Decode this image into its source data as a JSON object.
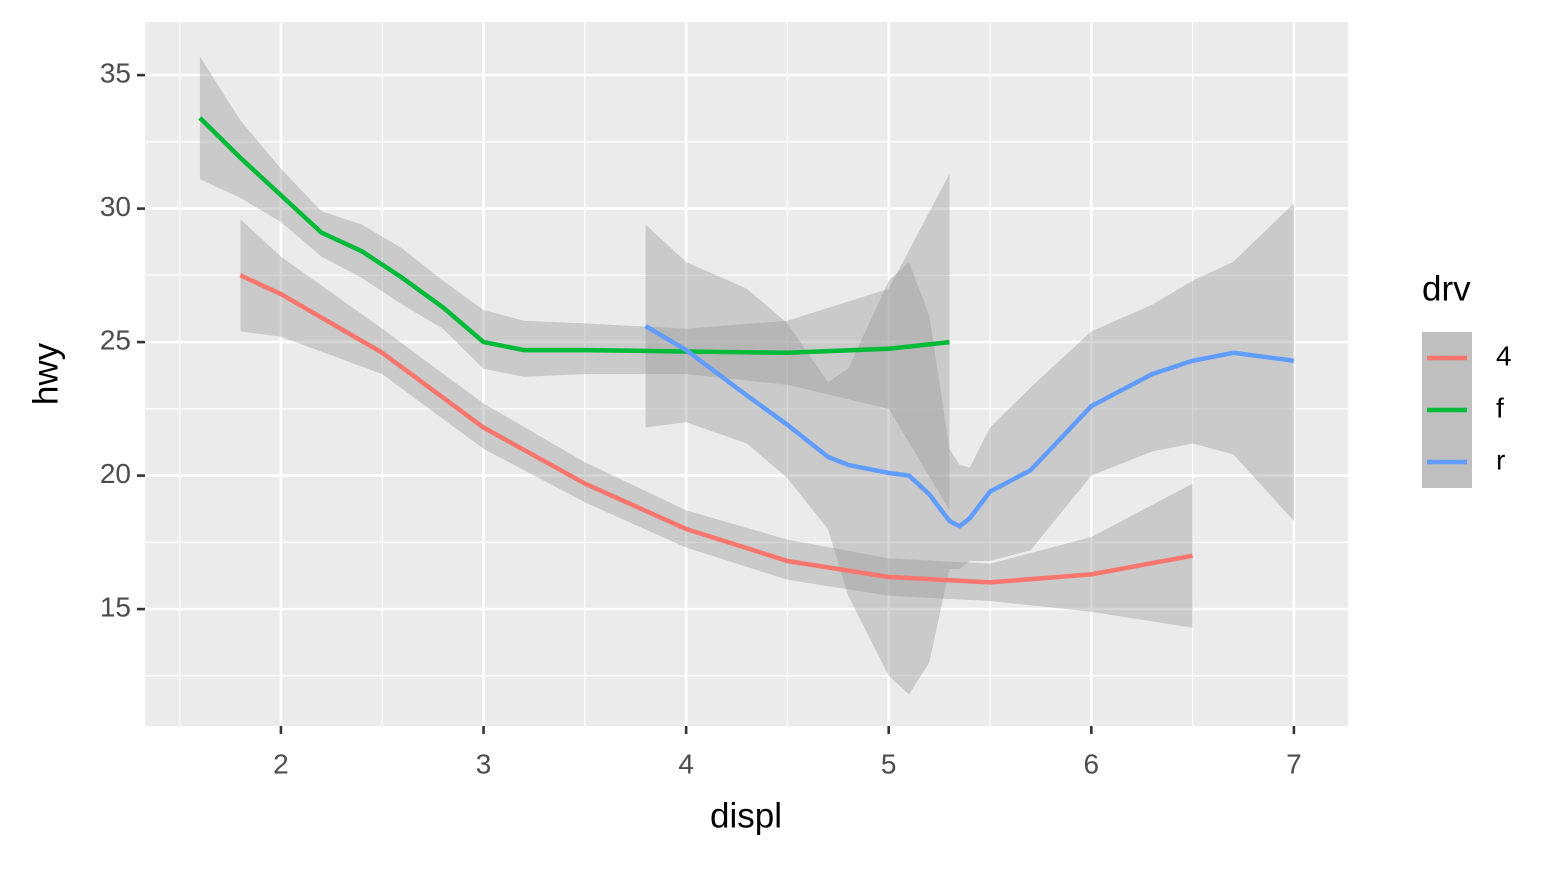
{
  "chart_data": {
    "type": "smooth",
    "x_label": "displ",
    "y_label": "hwy",
    "legend_title": "drv",
    "legend": "right",
    "xlim": [
      1.329,
      7.267
    ],
    "ylim": [
      10.62,
      36.99
    ],
    "xticks": [
      2,
      3,
      4,
      5,
      6,
      7
    ],
    "yticks": [
      15,
      20,
      25,
      30,
      35
    ],
    "xminor": [
      1.5,
      2.5,
      3.5,
      4.5,
      5.5,
      6.5
    ],
    "yminor": [
      12.5,
      17.5,
      22.5,
      27.5,
      32.5
    ],
    "grid": true,
    "series": [
      {
        "name": "4",
        "color": "#f8766d",
        "x": [
          1.8,
          2,
          2.5,
          3,
          3.5,
          4,
          4.5,
          5,
          5.5,
          6,
          6.5
        ],
        "values": [
          27.5,
          26.8,
          24.6,
          21.8,
          19.7,
          18.0,
          16.8,
          16.2,
          16.0,
          16.3,
          17.0
        ],
        "lower": [
          25.4,
          25.2,
          23.8,
          21.0,
          19.0,
          17.3,
          16.1,
          15.5,
          15.3,
          14.9,
          14.3
        ],
        "upper": [
          29.6,
          28.2,
          25.5,
          22.7,
          20.5,
          18.7,
          17.6,
          16.9,
          16.7,
          17.7,
          19.7
        ]
      },
      {
        "name": "f",
        "color": "#00ba38",
        "x": [
          1.6,
          1.8,
          2,
          2.2,
          2.4,
          2.6,
          2.8,
          3,
          3.2,
          3.5,
          4,
          4.5,
          5,
          5.3
        ],
        "values": [
          33.4,
          31.9,
          30.5,
          29.1,
          28.4,
          27.4,
          26.3,
          25.0,
          24.7,
          24.7,
          24.65,
          24.6,
          24.75,
          25.0
        ],
        "lower": [
          31.1,
          30.4,
          29.5,
          28.2,
          27.4,
          26.4,
          25.5,
          24.0,
          23.7,
          23.8,
          23.8,
          23.4,
          22.5,
          18.7
        ],
        "upper": [
          35.7,
          33.3,
          31.5,
          29.9,
          29.4,
          28.5,
          27.3,
          26.2,
          25.8,
          25.7,
          25.5,
          25.8,
          27.0,
          31.3
        ]
      },
      {
        "name": "r",
        "color": "#619cff",
        "x": [
          3.8,
          4,
          4.3,
          4.5,
          4.7,
          4.8,
          5,
          5.1,
          5.2,
          5.3,
          5.35,
          5.4,
          5.5,
          5.7,
          6,
          6.3,
          6.5,
          6.7,
          7
        ],
        "values": [
          25.6,
          24.7,
          23.0,
          21.9,
          20.7,
          20.4,
          20.1,
          20.0,
          19.3,
          18.3,
          18.1,
          18.4,
          19.4,
          20.2,
          22.6,
          23.8,
          24.3,
          24.6,
          24.3
        ],
        "lower": [
          21.8,
          22.0,
          21.2,
          19.9,
          18.0,
          15.5,
          12.5,
          11.8,
          13.0,
          16.5,
          16.5,
          16.8,
          16.8,
          17.2,
          20.0,
          20.9,
          21.2,
          20.8,
          18.3
        ],
        "upper": [
          29.4,
          28.0,
          27.0,
          25.7,
          23.5,
          24.0,
          27.3,
          28.0,
          26.0,
          21.0,
          20.4,
          20.3,
          21.8,
          23.3,
          25.4,
          26.4,
          27.3,
          28.0,
          30.2
        ]
      }
    ]
  }
}
